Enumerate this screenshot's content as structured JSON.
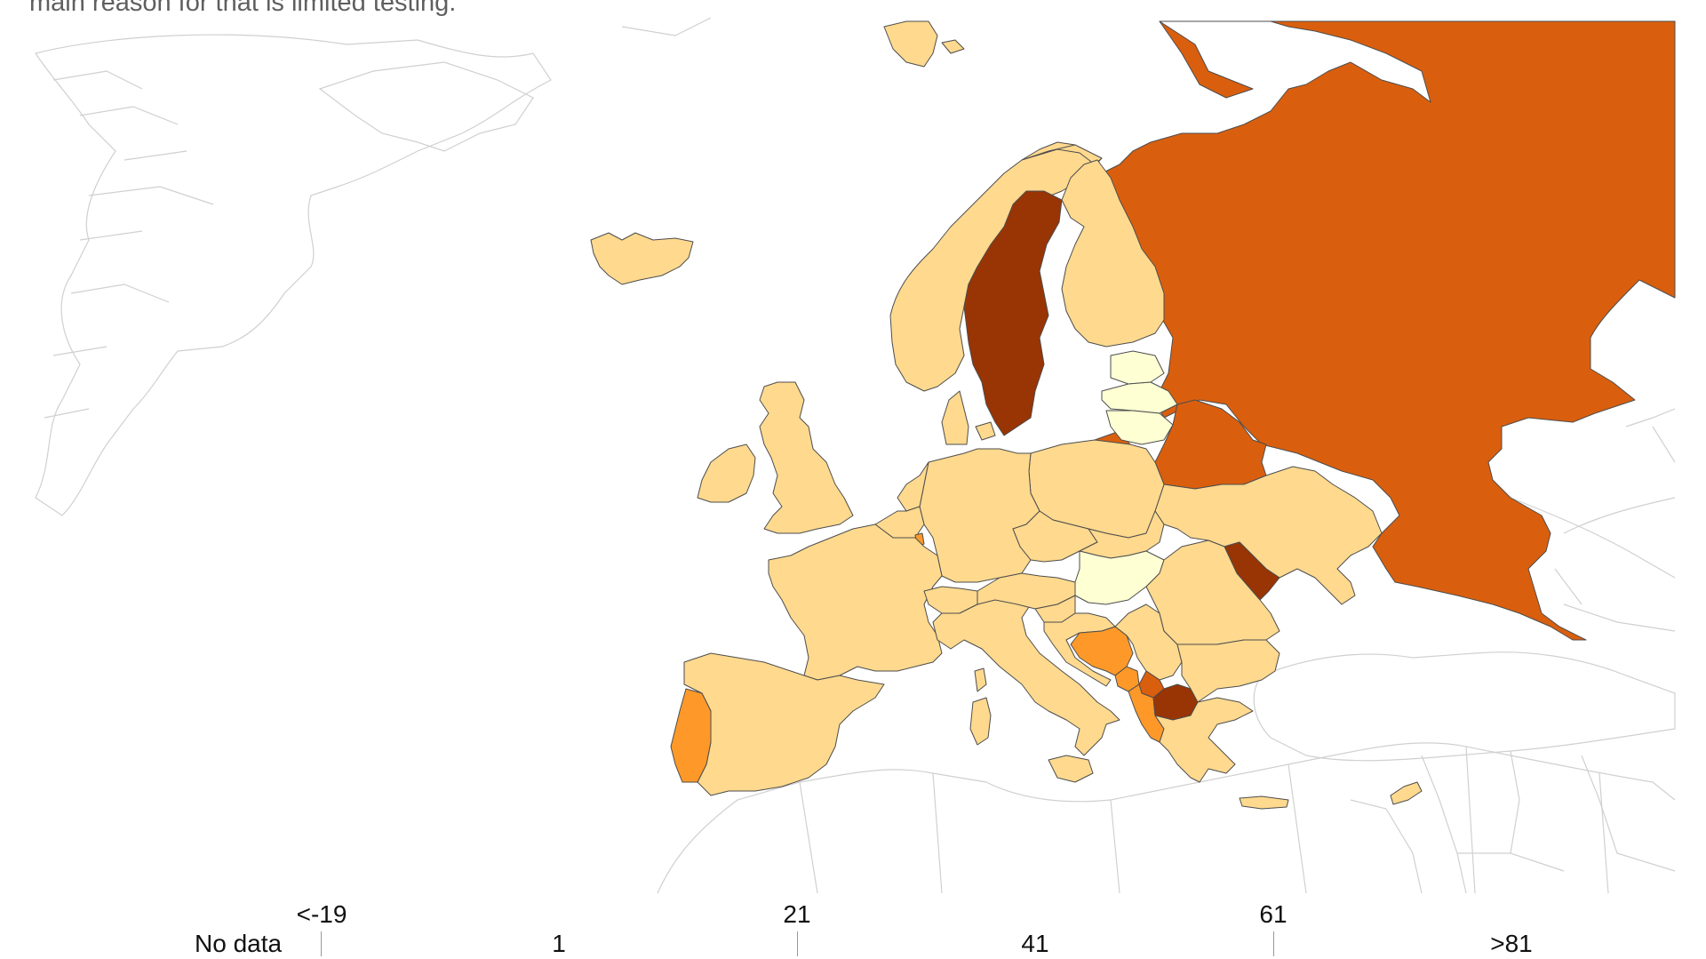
{
  "subtitle": "main reason for that is limited testing.",
  "legend": {
    "no_data_label": "No data",
    "upper_labels": [
      "<-19",
      "21",
      "61"
    ],
    "lower_labels": [
      "1",
      "41",
      ">81"
    ],
    "colors": {
      "no_data": "#ffffff",
      "bin_1": "#ffffd4",
      "bin_2": "#fed98e",
      "bin_3": "#fe9929",
      "bin_4": "#d95f0e",
      "bin_5": "#993404"
    }
  },
  "map": {
    "border_color": "#cfcfcf",
    "outline_color": "#555555",
    "regions": [
      {
        "name": "Iceland",
        "bin": "bin_2"
      },
      {
        "name": "Norway",
        "bin": "bin_2"
      },
      {
        "name": "Sweden",
        "bin": "bin_5"
      },
      {
        "name": "Finland",
        "bin": "bin_2"
      },
      {
        "name": "Russia",
        "bin": "bin_4"
      },
      {
        "name": "Estonia",
        "bin": "bin_1"
      },
      {
        "name": "Latvia",
        "bin": "bin_1"
      },
      {
        "name": "Lithuania",
        "bin": "bin_1"
      },
      {
        "name": "Kaliningrad",
        "bin": "bin_4"
      },
      {
        "name": "Belarus",
        "bin": "bin_4"
      },
      {
        "name": "Ukraine",
        "bin": "bin_2"
      },
      {
        "name": "Moldova",
        "bin": "bin_5"
      },
      {
        "name": "Poland",
        "bin": "bin_2"
      },
      {
        "name": "Germany",
        "bin": "bin_2"
      },
      {
        "name": "Denmark",
        "bin": "bin_2"
      },
      {
        "name": "United Kingdom",
        "bin": "bin_2"
      },
      {
        "name": "Ireland",
        "bin": "bin_2"
      },
      {
        "name": "France",
        "bin": "bin_2"
      },
      {
        "name": "Spain",
        "bin": "bin_2"
      },
      {
        "name": "Portugal",
        "bin": "bin_3"
      },
      {
        "name": "Italy",
        "bin": "bin_2"
      },
      {
        "name": "Switzerland",
        "bin": "bin_2"
      },
      {
        "name": "Austria",
        "bin": "bin_2"
      },
      {
        "name": "Czechia",
        "bin": "bin_2"
      },
      {
        "name": "Slovakia",
        "bin": "bin_2"
      },
      {
        "name": "Hungary",
        "bin": "bin_1"
      },
      {
        "name": "Romania",
        "bin": "bin_2"
      },
      {
        "name": "Bulgaria",
        "bin": "bin_2"
      },
      {
        "name": "Greece",
        "bin": "bin_2"
      },
      {
        "name": "Bosnia and Herzegovina",
        "bin": "bin_3"
      },
      {
        "name": "Montenegro",
        "bin": "bin_3"
      },
      {
        "name": "Albania",
        "bin": "bin_3"
      },
      {
        "name": "Kosovo",
        "bin": "bin_4"
      },
      {
        "name": "North Macedonia",
        "bin": "bin_5"
      },
      {
        "name": "Serbia",
        "bin": "bin_2"
      },
      {
        "name": "Croatia",
        "bin": "bin_2"
      },
      {
        "name": "Slovenia",
        "bin": "bin_2"
      },
      {
        "name": "Luxembourg",
        "bin": "bin_3"
      },
      {
        "name": "Cyprus",
        "bin": "bin_2"
      },
      {
        "name": "Sardinia",
        "bin": "bin_2"
      },
      {
        "name": "Sicily",
        "bin": "bin_2"
      },
      {
        "name": "Crete",
        "bin": "bin_2"
      }
    ]
  }
}
